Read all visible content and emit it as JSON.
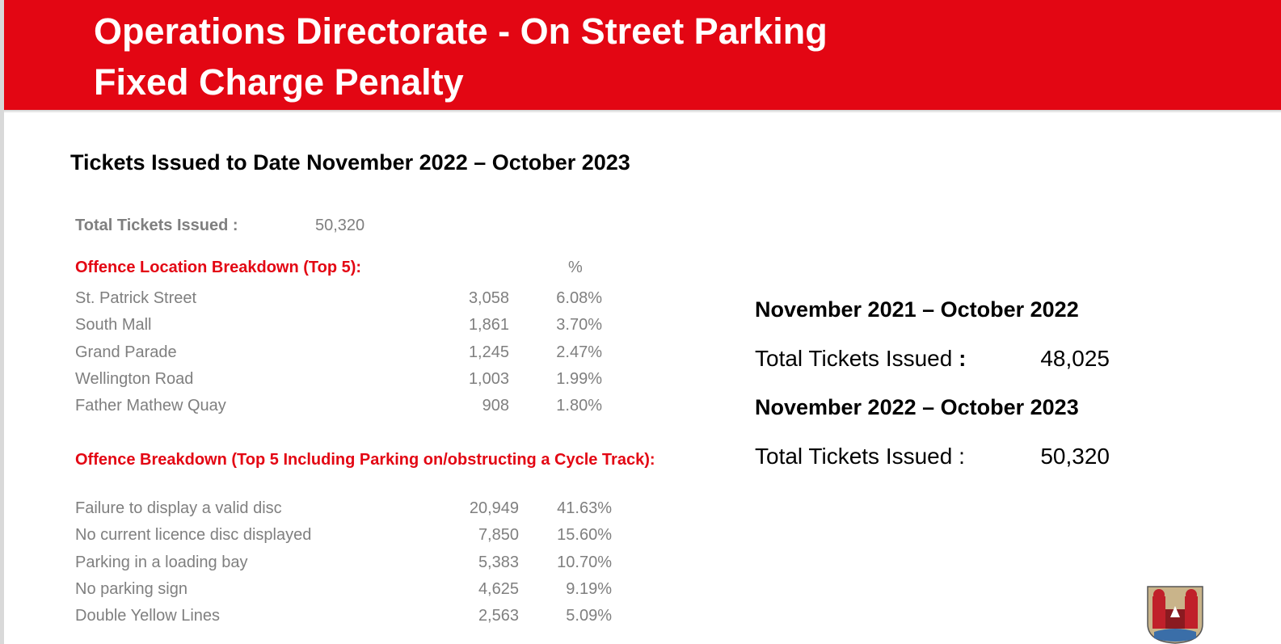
{
  "header": {
    "title_line1": "Operations Directorate - On Street Parking",
    "title_line2": "Fixed Charge Penalty",
    "brand_color": "#e30613"
  },
  "heading": "Tickets Issued to Date November 2022 – October 2023",
  "total": {
    "label": "Total Tickets Issued :",
    "value": "50,320"
  },
  "location_section": {
    "title": "Offence Location Breakdown (Top 5):",
    "pct_header": "%",
    "rows": [
      {
        "label": "St. Patrick Street",
        "count": "3,058",
        "pct": "6.08%"
      },
      {
        "label": "South Mall",
        "count": "1,861",
        "pct": "3.70%"
      },
      {
        "label": "Grand Parade",
        "count": "1,245",
        "pct": "2.47%"
      },
      {
        "label": "Wellington Road",
        "count": "1,003",
        "pct": "1.99%"
      },
      {
        "label": "Father Mathew Quay",
        "count": "908",
        "pct": "1.80%"
      }
    ]
  },
  "offence_section": {
    "title": "Offence Breakdown (Top 5 Including Parking on/obstructing a Cycle Track):",
    "rows": [
      {
        "label": "Failure to display a valid disc",
        "count": "20,949",
        "pct": "41.63%"
      },
      {
        "label": "No current licence disc displayed",
        "count": "7,850",
        "pct": "15.60%"
      },
      {
        "label": "Parking in a loading bay",
        "count": "5,383",
        "pct": "10.70%"
      },
      {
        "label": "No parking sign",
        "count": "4,625",
        "pct": "9.19%"
      },
      {
        "label": "Double Yellow Lines",
        "count": "2,563",
        "pct": "5.09%"
      }
    ]
  },
  "comparison": {
    "period1": {
      "title": "November 2021 – October 2022",
      "label": "Total Tickets Issued",
      "colon": ":",
      "value": "48,025"
    },
    "period2": {
      "title": "November 2022 – October 2023",
      "label": "Total Tickets Issued :",
      "value": "50,320"
    }
  },
  "crest_icon": "city-crest-icon"
}
